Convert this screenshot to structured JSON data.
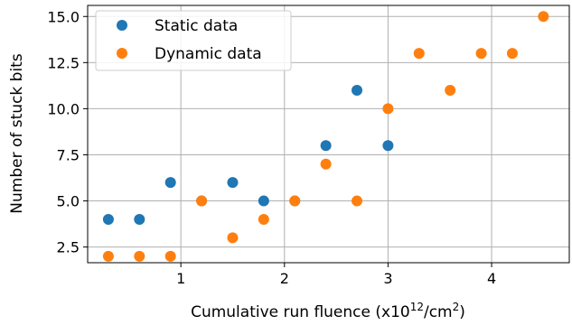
{
  "chart_data": {
    "type": "scatter",
    "xlabel_main": "Cumulative run fluence (x10",
    "xlabel_sup1": "12",
    "xlabel_mid": "/cm",
    "xlabel_sup2": "2",
    "xlabel_end": ")",
    "ylabel": "Number of stuck bits",
    "xlim": [
      0.1,
      4.75
    ],
    "ylim": [
      1.65,
      15.6
    ],
    "xticks": [
      1,
      2,
      3,
      4
    ],
    "xtick_labels": [
      "1",
      "2",
      "3",
      "4"
    ],
    "yticks": [
      2.5,
      5.0,
      7.5,
      10.0,
      12.5,
      15.0
    ],
    "ytick_labels": [
      "2.5",
      "5.0",
      "7.5",
      "10.0",
      "12.5",
      "15.0"
    ],
    "grid": true,
    "legend_position": "top-left",
    "series": [
      {
        "name": "Static data",
        "color": "#1f77b4",
        "x": [
          0.3,
          0.6,
          0.9,
          1.2,
          1.5,
          1.8,
          2.1,
          2.4,
          2.7,
          3.0
        ],
        "y": [
          4,
          4,
          6,
          5,
          6,
          5,
          5,
          8,
          11,
          8
        ]
      },
      {
        "name": "Dynamic data",
        "color": "#ff7f0e",
        "x": [
          0.3,
          0.6,
          0.9,
          1.2,
          1.5,
          1.8,
          2.1,
          2.4,
          2.7,
          3.0,
          3.3,
          3.6,
          3.9,
          4.2,
          4.5
        ],
        "y": [
          2,
          2,
          2,
          5,
          3,
          4,
          5,
          7,
          5,
          10,
          13,
          11,
          13,
          13,
          15
        ]
      }
    ]
  }
}
